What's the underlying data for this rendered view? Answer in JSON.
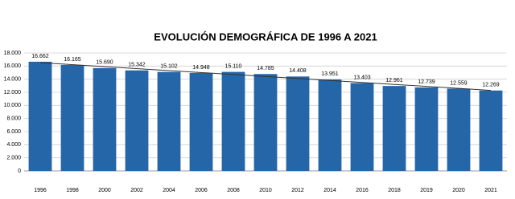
{
  "chart_data": {
    "type": "bar",
    "title": "EVOLUCIÓN DEMOGRÁFICA DE 1996 A 2021",
    "categories": [
      "1996",
      "1998",
      "2000",
      "2002",
      "2004",
      "2006",
      "2008",
      "2010",
      "2012",
      "2014",
      "2016",
      "2018",
      "2019",
      "2020",
      "2021"
    ],
    "values": [
      16662,
      16165,
      15690,
      15342,
      15102,
      14948,
      15110,
      14785,
      14408,
      13951,
      13403,
      12961,
      12739,
      12559,
      12269
    ],
    "value_labels": [
      "16.662",
      "16.165",
      "15.690",
      "15.342",
      "15.102",
      "14.948",
      "15.110",
      "14.785",
      "14.408",
      "13.951",
      "13.403",
      "12.961",
      "12.739",
      "12.559",
      "12.269"
    ],
    "color": "#2566a8",
    "ylim": [
      0,
      18000
    ],
    "yticks": [
      0,
      {
        "value": 2000,
        "label": "2.000"
      },
      {
        "value": 4000,
        "label": "4.000"
      },
      {
        "value": 6000,
        "label": "6.000"
      },
      {
        "value": 8000,
        "label": "8.000"
      },
      {
        "value": 10000,
        "label": "10.000"
      },
      {
        "value": 12000,
        "label": "12.000"
      },
      {
        "value": 14000,
        "label": "14.000"
      },
      {
        "value": 16000,
        "label": "16.000"
      },
      {
        "value": 18000,
        "label": "18.000"
      }
    ],
    "grid": true,
    "trendline": true
  }
}
